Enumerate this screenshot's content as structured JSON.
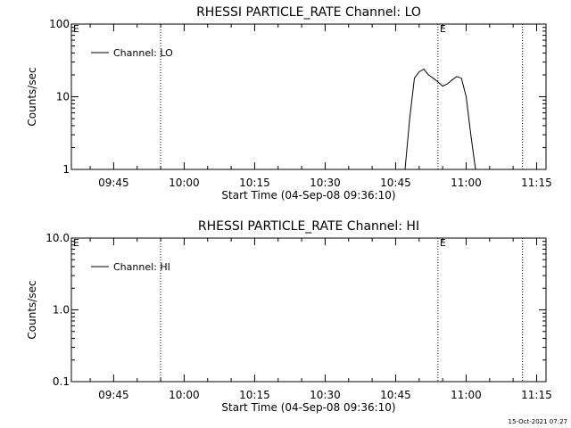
{
  "footer": {
    "timestamp": "15-Oct-2021 07:27"
  },
  "chart_data": [
    {
      "type": "line",
      "title": "RHESSI PARTICLE_RATE Channel: LO",
      "xlabel": "Start Time (04-Sep-08 09:36:10)",
      "ylabel": "Counts/sec",
      "y_scale": "log",
      "ylim": [
        1,
        100
      ],
      "y_ticks": [
        {
          "value": 1,
          "label": "1"
        },
        {
          "value": 10,
          "label": "10"
        },
        {
          "value": 100,
          "label": "100"
        }
      ],
      "xlim": [
        "09:36",
        "11:17"
      ],
      "x_ticks": [
        "09:45",
        "10:00",
        "10:15",
        "10:30",
        "10:45",
        "11:00",
        "11:15"
      ],
      "legend": {
        "position": "top-left",
        "entries": [
          "Channel: LO"
        ]
      },
      "markers": [
        {
          "time": "09:55",
          "label": ""
        },
        {
          "time": "10:54",
          "label": "E"
        },
        {
          "time": "11:12",
          "label": ""
        }
      ],
      "corner_label": "E",
      "series": [
        {
          "name": "Channel: LO",
          "points": [
            [
              "10:47",
              1.0
            ],
            [
              "10:48",
              5.0
            ],
            [
              "10:49",
              18.0
            ],
            [
              "10:50",
              22.0
            ],
            [
              "10:51",
              24.0
            ],
            [
              "10:52",
              20.0
            ],
            [
              "10:53",
              18.0
            ],
            [
              "10:54",
              16.0
            ],
            [
              "10:55",
              14.0
            ],
            [
              "10:56",
              15.0
            ],
            [
              "10:57",
              17.0
            ],
            [
              "10:58",
              19.0
            ],
            [
              "10:59",
              18.0
            ],
            [
              "11:00",
              10.0
            ],
            [
              "11:01",
              3.0
            ],
            [
              "11:02",
              1.0
            ]
          ]
        }
      ]
    },
    {
      "type": "line",
      "title": "RHESSI PARTICLE_RATE Channel: HI",
      "xlabel": "Start Time (04-Sep-08 09:36:10)",
      "ylabel": "Counts/sec",
      "y_scale": "log",
      "ylim": [
        0.1,
        10
      ],
      "y_ticks": [
        {
          "value": 0.1,
          "label": "0.1"
        },
        {
          "value": 1,
          "label": "1.0"
        },
        {
          "value": 10,
          "label": "10.0"
        }
      ],
      "xlim": [
        "09:36",
        "11:17"
      ],
      "x_ticks": [
        "09:45",
        "10:00",
        "10:15",
        "10:30",
        "10:45",
        "11:00",
        "11:15"
      ],
      "legend": {
        "position": "top-left",
        "entries": [
          "Channel: HI"
        ]
      },
      "markers": [
        {
          "time": "09:55",
          "label": ""
        },
        {
          "time": "10:54",
          "label": "E"
        },
        {
          "time": "11:12",
          "label": ""
        }
      ],
      "corner_label": "E",
      "series": [
        {
          "name": "Channel: HI",
          "points": []
        }
      ]
    }
  ]
}
